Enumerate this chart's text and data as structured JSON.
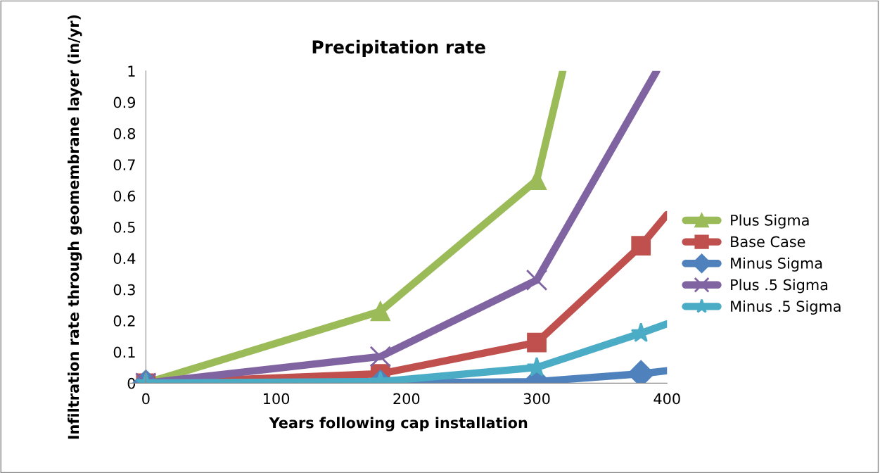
{
  "chart_data": {
    "type": "line",
    "title": "Precipitation rate",
    "xlabel": "Years following cap installation",
    "ylabel": "Infiltration rate through geomembrane layer (in/yr)",
    "xlim": [
      -12,
      400
    ],
    "xticks": [
      0,
      100,
      200,
      300,
      400
    ],
    "ylim": [
      0,
      1
    ],
    "yticks": [
      0,
      0.1,
      0.2,
      0.3,
      0.4,
      0.5,
      0.6,
      0.7,
      0.8,
      0.9,
      1
    ],
    "grid": false,
    "legend": "right",
    "series": [
      {
        "name": "Plus Sigma",
        "color": "#9bbb59",
        "marker": "triangle",
        "x": [
          0,
          180,
          300,
          320
        ],
        "values": [
          0,
          0.23,
          0.65,
          1
        ]
      },
      {
        "name": "Base Case",
        "color": "#c0504d",
        "marker": "square",
        "x": [
          0,
          180,
          300,
          380,
          400
        ],
        "values": [
          0,
          0.03,
          0.13,
          0.44,
          0.54
        ]
      },
      {
        "name": "Minus Sigma",
        "color": "#4f81bd",
        "marker": "diamond",
        "x": [
          0,
          180,
          300,
          380,
          400
        ],
        "values": [
          0,
          0,
          0.005,
          0.03,
          0.04
        ]
      },
      {
        "name": "Plus .5 Sigma",
        "color": "#8064a2",
        "marker": "cross",
        "x": [
          0,
          180,
          300,
          392
        ],
        "values": [
          0,
          0.085,
          0.33,
          1
        ]
      },
      {
        "name": "Minus .5 Sigma",
        "color": "#4bacc6",
        "marker": "star",
        "x": [
          0,
          180,
          300,
          380,
          400
        ],
        "values": [
          0,
          0.005,
          0.05,
          0.16,
          0.19
        ]
      }
    ]
  }
}
